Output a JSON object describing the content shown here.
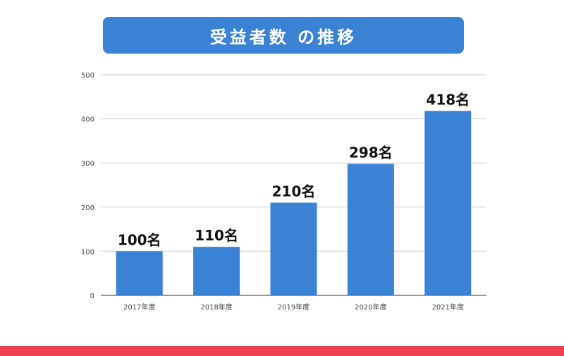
{
  "title": "受益者数 の推移",
  "colors": {
    "banner": "#3a82d4",
    "bar": "#3a82d4",
    "grid": "#cccccc",
    "axis_text": "#444444",
    "value_label": "#111111",
    "bottom_bar": "#ef4150"
  },
  "chart_data": {
    "type": "bar",
    "title": "受益者数 の推移",
    "categories": [
      "2017年度",
      "2018年度",
      "2019年度",
      "2020年度",
      "2021年度"
    ],
    "values": [
      100,
      110,
      210,
      298,
      418
    ],
    "data_labels": [
      "100名",
      "110名",
      "210名",
      "298名",
      "418名"
    ],
    "ylim": [
      0,
      500
    ],
    "yticks": [
      "0",
      "100",
      "200",
      "300",
      "400",
      "500"
    ],
    "xlabel": "",
    "ylabel": "",
    "grid": true,
    "legend": false
  }
}
